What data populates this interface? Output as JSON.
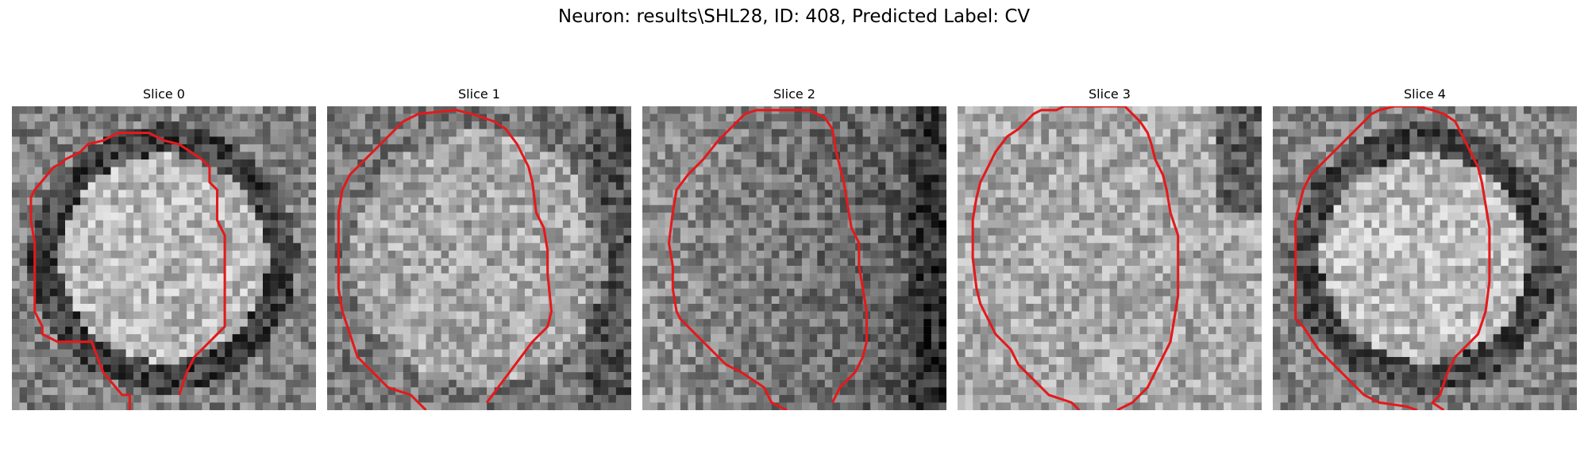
{
  "figure": {
    "title": "Neuron: results\\SHL28, ID: 408, Predicted Label: CV",
    "contour_color": "#e31a1c",
    "colormap": "gray"
  },
  "slices": [
    {
      "title": "Slice 0",
      "seed": 11,
      "profile": "ring",
      "base": 0.5,
      "inner": 0.72,
      "dark": 0.25,
      "contour": [
        [
          15.5,
          40
        ],
        [
          15.5,
          38
        ],
        [
          14.5,
          38
        ],
        [
          12,
          35
        ],
        [
          10.5,
          31
        ],
        [
          6,
          31
        ],
        [
          5,
          30.5
        ],
        [
          4,
          30
        ],
        [
          4,
          29
        ],
        [
          3,
          27
        ],
        [
          3,
          24
        ],
        [
          3,
          18
        ],
        [
          2.5,
          15
        ],
        [
          2.5,
          12
        ],
        [
          3,
          11
        ],
        [
          5.5,
          8
        ],
        [
          6.5,
          7.5
        ],
        [
          7,
          7
        ],
        [
          9,
          6
        ],
        [
          10,
          5
        ],
        [
          12,
          4.5
        ],
        [
          14,
          3.5
        ],
        [
          17,
          3.5
        ],
        [
          18,
          3.5
        ],
        [
          20,
          4.5
        ],
        [
          22,
          5
        ],
        [
          23.5,
          6
        ],
        [
          25,
          7
        ],
        [
          26,
          8
        ],
        [
          26,
          10
        ],
        [
          27,
          11
        ],
        [
          27,
          15
        ],
        [
          28,
          17
        ],
        [
          28,
          20
        ],
        [
          28,
          24
        ],
        [
          28,
          27
        ],
        [
          28,
          29
        ],
        [
          27,
          30
        ],
        [
          26,
          31
        ],
        [
          24,
          33
        ],
        [
          23,
          35
        ],
        [
          22,
          38
        ]
      ]
    },
    {
      "title": "Slice 1",
      "seed": 23,
      "profile": "soft",
      "base": 0.52,
      "inner": 0.66,
      "dark": 0.3,
      "contour": [
        [
          13,
          40
        ],
        [
          11,
          38
        ],
        [
          8,
          37
        ],
        [
          6,
          35
        ],
        [
          4,
          33
        ],
        [
          3,
          30
        ],
        [
          2,
          27
        ],
        [
          1.5,
          24
        ],
        [
          1.5,
          20
        ],
        [
          1.5,
          17
        ],
        [
          1.5,
          14
        ],
        [
          2,
          11
        ],
        [
          3,
          9
        ],
        [
          4.5,
          7.5
        ],
        [
          6.5,
          5.5
        ],
        [
          8,
          4
        ],
        [
          10,
          2
        ],
        [
          12,
          1
        ],
        [
          17,
          0.5
        ],
        [
          19,
          1
        ],
        [
          22,
          2
        ],
        [
          23.5,
          3
        ],
        [
          25,
          5
        ],
        [
          26.5,
          8
        ],
        [
          27,
          10
        ],
        [
          27.5,
          14
        ],
        [
          28.5,
          16
        ],
        [
          29,
          19
        ],
        [
          29,
          22
        ],
        [
          29.5,
          27
        ],
        [
          29,
          29
        ],
        [
          27,
          31
        ],
        [
          25.5,
          33
        ],
        [
          24,
          35
        ],
        [
          22.5,
          37
        ],
        [
          21,
          39
        ]
      ]
    },
    {
      "title": "Slice 2",
      "seed": 37,
      "profile": "shade",
      "base": 0.48,
      "inner": 0.58,
      "dark": 0.22,
      "contour": [
        [
          19,
          40
        ],
        [
          17,
          39
        ],
        [
          16,
          37
        ],
        [
          14.5,
          36
        ],
        [
          13,
          35
        ],
        [
          11,
          34
        ],
        [
          10,
          33
        ],
        [
          8,
          31
        ],
        [
          7,
          30
        ],
        [
          5,
          28
        ],
        [
          4.5,
          27
        ],
        [
          4,
          24
        ],
        [
          4,
          21
        ],
        [
          3.5,
          18
        ],
        [
          4,
          14
        ],
        [
          4.5,
          11
        ],
        [
          6,
          9
        ],
        [
          8,
          7
        ],
        [
          10,
          4.5
        ],
        [
          12,
          2.5
        ],
        [
          13.5,
          1
        ],
        [
          15,
          0.5
        ],
        [
          18,
          0.5
        ],
        [
          22,
          0.5
        ],
        [
          24,
          1.5
        ],
        [
          25,
          3
        ],
        [
          25.5,
          6
        ],
        [
          26,
          8
        ],
        [
          26.5,
          10
        ],
        [
          27,
          13
        ],
        [
          27.5,
          16
        ],
        [
          28.5,
          18
        ],
        [
          28.5,
          21
        ],
        [
          29,
          24
        ],
        [
          29.5,
          27
        ],
        [
          29.5,
          31
        ],
        [
          29,
          33
        ],
        [
          28,
          35
        ],
        [
          26,
          37
        ],
        [
          25,
          39
        ]
      ]
    },
    {
      "title": "Slice 3",
      "seed": 51,
      "profile": "flat",
      "base": 0.62,
      "inner": 0.66,
      "dark": 0.3,
      "contour": [
        [
          16,
          40
        ],
        [
          15,
          39
        ],
        [
          12,
          38
        ],
        [
          10,
          36
        ],
        [
          8,
          34
        ],
        [
          7,
          32
        ],
        [
          5,
          30
        ],
        [
          4,
          28
        ],
        [
          3,
          26
        ],
        [
          2.5,
          24
        ],
        [
          2,
          20
        ],
        [
          2,
          15
        ],
        [
          2.5,
          12
        ],
        [
          3,
          10
        ],
        [
          4,
          8
        ],
        [
          5,
          6
        ],
        [
          6.5,
          4
        ],
        [
          8,
          3
        ],
        [
          9,
          2
        ],
        [
          10,
          1
        ],
        [
          11,
          0.5
        ],
        [
          12,
          0.5
        ],
        [
          13,
          0.5
        ],
        [
          14,
          0
        ],
        [
          22,
          0
        ],
        [
          24,
          2
        ],
        [
          25,
          3.5
        ],
        [
          25.5,
          5
        ],
        [
          26,
          7
        ],
        [
          27,
          9
        ],
        [
          27.5,
          11
        ],
        [
          28,
          14
        ],
        [
          29,
          17
        ],
        [
          29,
          21
        ],
        [
          29,
          25
        ],
        [
          28.5,
          28
        ],
        [
          28,
          31
        ],
        [
          27,
          33
        ],
        [
          26,
          35
        ],
        [
          25,
          37
        ],
        [
          24,
          38
        ],
        [
          23,
          39
        ],
        [
          21,
          40
        ]
      ]
    },
    {
      "title": "Slice 4",
      "seed": 67,
      "profile": "ring2",
      "base": 0.52,
      "inner": 0.74,
      "dark": 0.28,
      "contour": [
        [
          19,
          40
        ],
        [
          17.5,
          39.5
        ],
        [
          14,
          39
        ],
        [
          12,
          38
        ],
        [
          10,
          36
        ],
        [
          8,
          34
        ],
        [
          6,
          32
        ],
        [
          4,
          29
        ],
        [
          3,
          28
        ],
        [
          3,
          25
        ],
        [
          3,
          20
        ],
        [
          3,
          15
        ],
        [
          4,
          11
        ],
        [
          5,
          9
        ],
        [
          6,
          8
        ],
        [
          8,
          6
        ],
        [
          10,
          4
        ],
        [
          12,
          2
        ],
        [
          13,
          1
        ],
        [
          14,
          0.5
        ],
        [
          16,
          0
        ],
        [
          19,
          0
        ],
        [
          21,
          0.5
        ],
        [
          22.5,
          1
        ],
        [
          24,
          2
        ],
        [
          25,
          4
        ],
        [
          26,
          6
        ],
        [
          27,
          8
        ],
        [
          27.5,
          10
        ],
        [
          28,
          13
        ],
        [
          28.5,
          16
        ],
        [
          28.5,
          20
        ],
        [
          28.5,
          23
        ],
        [
          28,
          27
        ],
        [
          27,
          30
        ],
        [
          25,
          32
        ],
        [
          24,
          33
        ],
        [
          23,
          35
        ],
        [
          22,
          38
        ],
        [
          21,
          39
        ],
        [
          22.5,
          40
        ]
      ]
    }
  ]
}
